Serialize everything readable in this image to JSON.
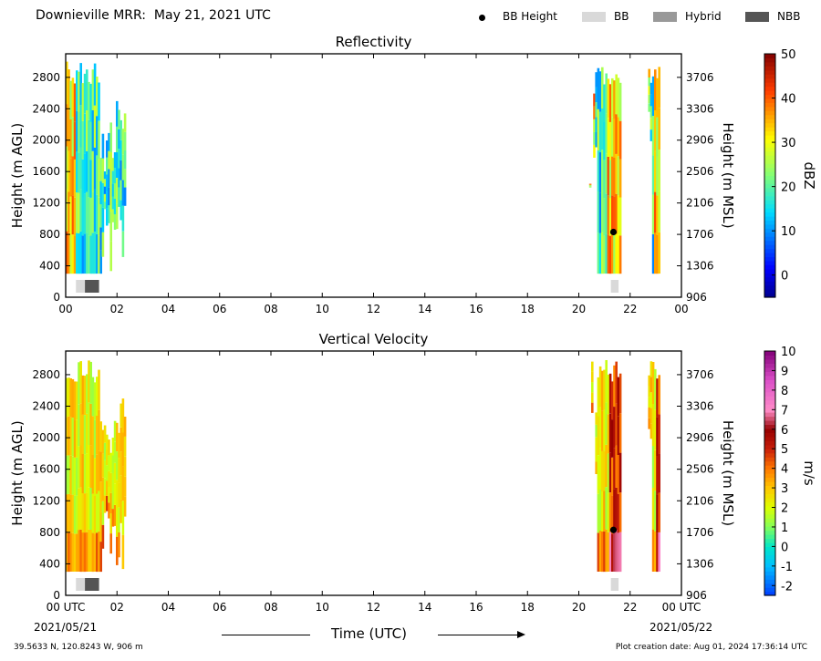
{
  "header": {
    "title": "Downieville MRR:  May 21, 2021 UTC",
    "legend": [
      {
        "label": "BB Height",
        "kind": "dot",
        "color": "#000000"
      },
      {
        "label": "BB",
        "kind": "box",
        "color": "#d9d9d9"
      },
      {
        "label": "Hybrid",
        "kind": "box",
        "color": "#999999"
      },
      {
        "label": "NBB",
        "kind": "box",
        "color": "#555555"
      }
    ]
  },
  "footer": {
    "location": "39.5633 N, 120.8243 W, 906 m",
    "created": "Plot creation date: Aug 01, 2024 17:36:14 UTC",
    "xaxis_title": "Time (UTC)",
    "start_date": "2021/05/21",
    "end_date": "2021/05/22"
  },
  "chart_data": [
    {
      "type": "heatmap",
      "title": "Reflectivity",
      "ylabel": "Height (m AGL)",
      "ylabel_right": "Height (m MSL)",
      "colorbar_label": "dBZ",
      "xlim": [
        0,
        24
      ],
      "ylim": [
        0,
        3100
      ],
      "x_ticks": [
        "00",
        "02",
        "04",
        "06",
        "08",
        "10",
        "12",
        "14",
        "16",
        "18",
        "20",
        "22",
        "00"
      ],
      "y_ticks": [
        0,
        400,
        800,
        1200,
        1600,
        2000,
        2400,
        2800
      ],
      "y_ticks_right": [
        906,
        1306,
        1706,
        2106,
        2506,
        2906,
        3306,
        3706
      ],
      "colorbar_range": [
        -5,
        50
      ],
      "colorbar_ticks": [
        0,
        10,
        20,
        30,
        40,
        50
      ],
      "bb_height": [
        {
          "time": 21.35,
          "height": 830
        }
      ],
      "bb_type": [
        {
          "start": 0.4,
          "end": 0.75,
          "kind": "BB"
        },
        {
          "start": 0.75,
          "end": 1.3,
          "kind": "NBB"
        },
        {
          "start": 21.25,
          "end": 21.55,
          "kind": "BB"
        }
      ],
      "echo_regions": [
        {
          "start": 0.0,
          "end": 2.3,
          "bottom": 300,
          "top": 3000
        },
        {
          "start": 20.4,
          "end": 21.6,
          "bottom": 300,
          "top": 3000
        },
        {
          "start": 22.7,
          "end": 23.1,
          "bottom": 300,
          "top": 3000
        }
      ]
    },
    {
      "type": "heatmap",
      "title": "Vertical Velocity",
      "ylabel": "Height (m AGL)",
      "ylabel_right": "Height (m MSL)",
      "colorbar_label": "m/s",
      "xlim": [
        0,
        24
      ],
      "ylim": [
        0,
        3100
      ],
      "x_ticks": [
        "00 UTC",
        "02",
        "04",
        "06",
        "08",
        "10",
        "12",
        "14",
        "16",
        "18",
        "20",
        "22",
        "00 UTC"
      ],
      "y_ticks": [
        0,
        400,
        800,
        1200,
        1600,
        2000,
        2400,
        2800
      ],
      "y_ticks_right": [
        906,
        1306,
        1706,
        2106,
        2506,
        2906,
        3306,
        3706
      ],
      "colorbar_range": [
        -2.5,
        10
      ],
      "colorbar_ticks": [
        -2,
        -1,
        0,
        1,
        2,
        3,
        4,
        5,
        6,
        7,
        8,
        9,
        10
      ],
      "bb_height": [
        {
          "time": 21.35,
          "height": 830
        }
      ],
      "bb_type": [
        {
          "start": 0.4,
          "end": 0.75,
          "kind": "BB"
        },
        {
          "start": 0.75,
          "end": 1.3,
          "kind": "NBB"
        },
        {
          "start": 21.25,
          "end": 21.55,
          "kind": "BB"
        }
      ],
      "echo_regions": [
        {
          "start": 0.0,
          "end": 2.3,
          "bottom": 300,
          "top": 3000
        },
        {
          "start": 20.4,
          "end": 21.6,
          "bottom": 300,
          "top": 3000
        },
        {
          "start": 22.7,
          "end": 23.1,
          "bottom": 300,
          "top": 3000
        }
      ]
    }
  ]
}
